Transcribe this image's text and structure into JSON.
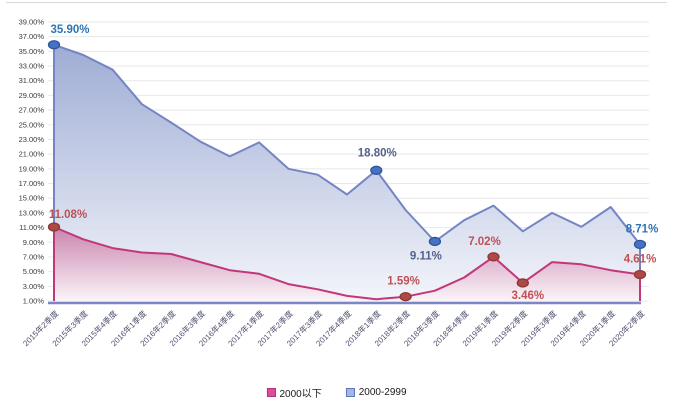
{
  "chart_data": {
    "type": "area",
    "title": "",
    "xlabel": "",
    "ylabel": "",
    "grid": true,
    "legend_position": "bottom",
    "ylim": [
      1,
      39
    ],
    "y_tick_step": 2,
    "y_tick_labels": [
      "39.00%",
      "37.00%",
      "35.00%",
      "33.00%",
      "31.00%",
      "29.00%",
      "27.00%",
      "25.00%",
      "23.00%",
      "21.00%",
      "19.00%",
      "17.00%",
      "15.00%",
      "13.00%",
      "11.00%",
      "9.00%",
      "7.00%",
      "5.00%",
      "3.00%",
      "1.00%"
    ],
    "categories": [
      "2015年2季度",
      "2015年3季度",
      "2015年4季度",
      "2016年1季度",
      "2016年2季度",
      "2016年3季度",
      "2016年4季度",
      "2017年1季度",
      "2017年2季度",
      "2017年3季度",
      "2017年4季度",
      "2018年1季度",
      "2018年2季度",
      "2018年3季度",
      "2018年4季度",
      "2019年1季度",
      "2019年2季度",
      "2019年3季度",
      "2019年4季度",
      "2020年1季度",
      "2020年2季度"
    ],
    "series": [
      {
        "name": "2000-2999",
        "values": [
          35.9,
          34.5,
          32.5,
          27.8,
          25.3,
          22.7,
          20.7,
          22.6,
          19.0,
          18.2,
          15.5,
          18.8,
          13.4,
          9.11,
          12.0,
          14.0,
          10.5,
          13.0,
          11.1,
          13.8,
          8.71
        ],
        "line_color": "#7585C4",
        "marker_fill": "#4472C4",
        "marker_stroke": "#2F5597",
        "fill_top": "#96A5D1",
        "fill_bottom": "#F2F4FA",
        "labels": [
          {
            "index": 0,
            "text": "35.90%",
            "color": "#2E74B5",
            "dx": 16,
            "dy": -12
          },
          {
            "index": 11,
            "text": "18.80%",
            "color": "#52628C",
            "dx": 1,
            "dy": -14
          },
          {
            "index": 13,
            "text": "9.11%",
            "color": "#52628C",
            "dx": -9,
            "dy": 18
          },
          {
            "index": 20,
            "text": "8.71%",
            "color": "#2E74B5",
            "dx": 2,
            "dy": -12
          }
        ]
      },
      {
        "name": "2000以下",
        "values": [
          11.08,
          9.4,
          8.2,
          7.6,
          7.4,
          6.3,
          5.2,
          4.7,
          3.3,
          2.6,
          1.7,
          1.25,
          1.59,
          2.4,
          4.2,
          7.02,
          3.46,
          6.3,
          6.0,
          5.2,
          4.61
        ],
        "line_color": "#C2367A",
        "marker_fill": "#AD4A45",
        "marker_stroke": "#8C3836",
        "fill_top": "#C87CA7",
        "fill_bottom": "#FBF4F8",
        "labels": [
          {
            "index": 0,
            "text": "11.08%",
            "color": "#BE5154",
            "dx": 14,
            "dy": -9
          },
          {
            "index": 12,
            "text": "1.59%",
            "color": "#BE5154",
            "dx": -2,
            "dy": -12
          },
          {
            "index": 15,
            "text": "7.02%",
            "color": "#BE5154",
            "dx": -9,
            "dy": -12
          },
          {
            "index": 16,
            "text": "3.46%",
            "color": "#BE5154",
            "dx": 5,
            "dy": 16
          },
          {
            "index": 20,
            "text": "4.61%",
            "color": "#BE5154",
            "dx": 0,
            "dy": -12
          }
        ]
      }
    ],
    "legend": [
      {
        "label": "2000以下",
        "swatch_fill": "#E04A9E",
        "swatch_stroke": "#B13379"
      },
      {
        "label": "2000-2999",
        "swatch_fill": "#A8B5DE",
        "swatch_stroke": "#5B79BE"
      }
    ],
    "axis_colors": {
      "gridline": "#E8E8E8",
      "x_axis_line": "#7B87C5",
      "y_tick_text": "#3A3A3A",
      "x_tick_text": "#50506E"
    }
  }
}
